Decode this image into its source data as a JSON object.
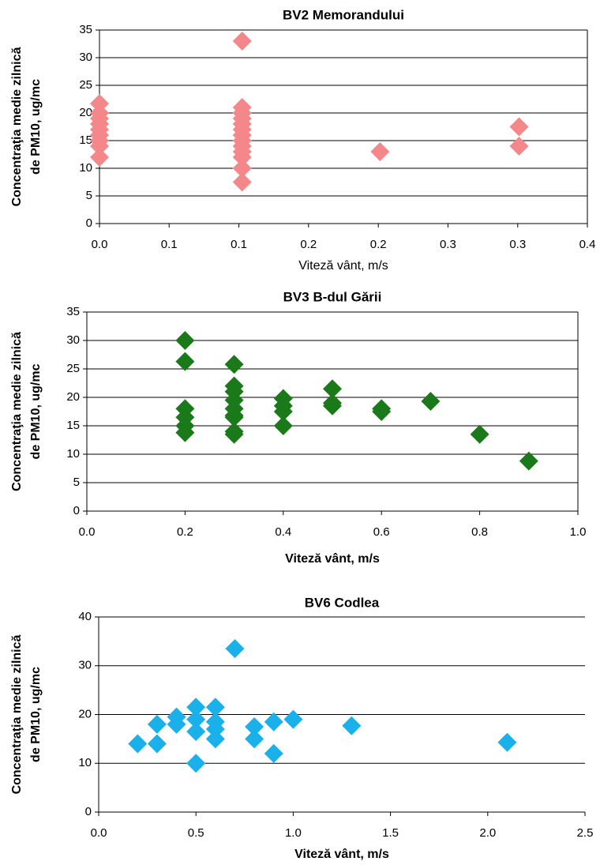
{
  "chart_data": [
    {
      "type": "scatter",
      "title": "BV2 Memorandului",
      "xlabel": "Viteză vânt, m/s",
      "ylabel": [
        "Concentraţia medie zilnică",
        "de PM10, ug/mc"
      ],
      "xlim": [
        0,
        0.4
      ],
      "xticks": [
        {
          "value": 0,
          "label": "0.0"
        },
        {
          "value": 0.0571,
          "label": "0.1"
        },
        {
          "value": 0.1143,
          "label": "0.1"
        },
        {
          "value": 0.1714,
          "label": "0.2"
        },
        {
          "value": 0.2286,
          "label": "0.2"
        },
        {
          "value": 0.2857,
          "label": "0.3"
        },
        {
          "value": 0.3429,
          "label": "0.3"
        },
        0.4
      ],
      "ylim": [
        0,
        35
      ],
      "yticks": [
        0,
        5,
        10,
        15,
        20,
        25,
        30,
        35
      ],
      "grid": true,
      "series": [
        {
          "color": "#f4878a",
          "x": [
            0,
            0,
            0,
            0,
            0,
            0,
            0,
            0,
            0,
            0.117,
            0.117,
            0.117,
            0.117,
            0.117,
            0.117,
            0.117,
            0.117,
            0.117,
            0.117,
            0.117,
            0.117,
            0.117,
            0.23,
            0.344,
            0.344
          ],
          "values": [
            12,
            14,
            15,
            16,
            17,
            18,
            19,
            20,
            21.7,
            7.5,
            10,
            12,
            13,
            14,
            15,
            16,
            17,
            18,
            19,
            20,
            21,
            33,
            13,
            14,
            17.5
          ]
        }
      ]
    },
    {
      "type": "scatter",
      "title": "BV3 B-dul Gării",
      "xlabel": "Viteză vânt, m/s",
      "ylabel": [
        "Concentraţia medie zilnică",
        "de PM10, ug/mc"
      ],
      "xlim": [
        0,
        1
      ],
      "xticks": [
        {
          "value": 0,
          "label": "0.0"
        },
        0.2,
        0.4,
        0.6,
        0.8,
        {
          "value": 1,
          "label": "1.0"
        }
      ],
      "ylim": [
        0,
        35
      ],
      "yticks": [
        0,
        5,
        10,
        15,
        20,
        25,
        30,
        35
      ],
      "grid": true,
      "series": [
        {
          "color": "#1a7a1a",
          "x": [
            0.2,
            0.2,
            0.2,
            0.2,
            0.2,
            0.2,
            0.3,
            0.3,
            0.3,
            0.3,
            0.3,
            0.3,
            0.3,
            0.3,
            0.3,
            0.4,
            0.4,
            0.4,
            0.4,
            0.5,
            0.5,
            0.5,
            0.6,
            0.6,
            0.7,
            0.8,
            0.9
          ],
          "values": [
            30,
            26.3,
            18,
            16.5,
            15,
            13.8,
            25.8,
            22,
            21,
            19.5,
            18,
            16.8,
            16.5,
            14,
            13.5,
            19.8,
            18.5,
            17.5,
            15,
            21.5,
            19,
            18.5,
            18,
            17.5,
            19.3,
            13.5,
            8.8
          ]
        }
      ]
    },
    {
      "type": "scatter",
      "title": "BV6 Codlea",
      "xlabel": "Viteză vânt, m/s",
      "ylabel": [
        "Concentraţia medie zilnică",
        "de PM10, ug/mc"
      ],
      "xlim": [
        0,
        2.5
      ],
      "xticks": [
        {
          "value": 0,
          "label": "0.0"
        },
        0.5,
        {
          "value": 1,
          "label": "1.0"
        },
        1.5,
        {
          "value": 2,
          "label": "2.0"
        },
        2.5
      ],
      "ylim": [
        0,
        40
      ],
      "yticks": [
        0,
        10,
        20,
        30,
        40
      ],
      "grid": true,
      "series": [
        {
          "color": "#1ab0ea",
          "x": [
            0.2,
            0.3,
            0.3,
            0.4,
            0.4,
            0.5,
            0.5,
            0.5,
            0.5,
            0.6,
            0.6,
            0.6,
            0.6,
            0.7,
            0.8,
            0.8,
            0.9,
            0.9,
            1,
            1.3,
            2.1
          ],
          "values": [
            14,
            14,
            18,
            19.5,
            18,
            21.5,
            19,
            16.5,
            10,
            21.5,
            18.5,
            17,
            15,
            33.5,
            17.5,
            15,
            18.5,
            12,
            19,
            17.7,
            14.3
          ]
        }
      ]
    }
  ]
}
